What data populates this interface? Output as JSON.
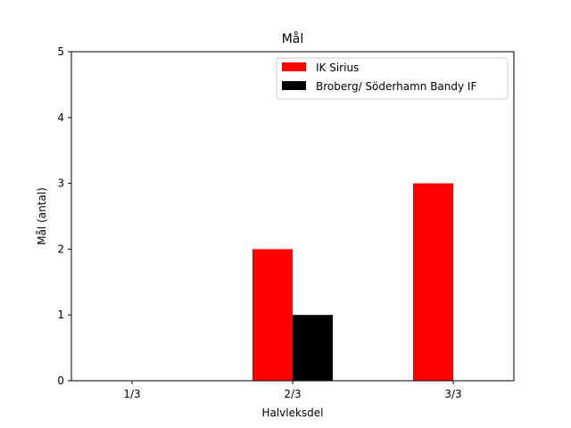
{
  "chart_data": {
    "type": "bar",
    "title": "Mål",
    "xlabel": "Halvleksdel",
    "ylabel": "Mål (antal)",
    "categories": [
      "1/3",
      "2/3",
      "3/3"
    ],
    "series": [
      {
        "name": "IK Sirius",
        "values": [
          0,
          2,
          3
        ],
        "color": "#ff0000"
      },
      {
        "name": "Broberg/ Söderhamn Bandy IF",
        "values": [
          0,
          1,
          0
        ],
        "color": "#000000"
      }
    ],
    "ylim": [
      0,
      5
    ],
    "yticks": [
      "0",
      "1",
      "2",
      "3",
      "4",
      "5"
    ],
    "grid": false,
    "legend_position": "top-right"
  }
}
